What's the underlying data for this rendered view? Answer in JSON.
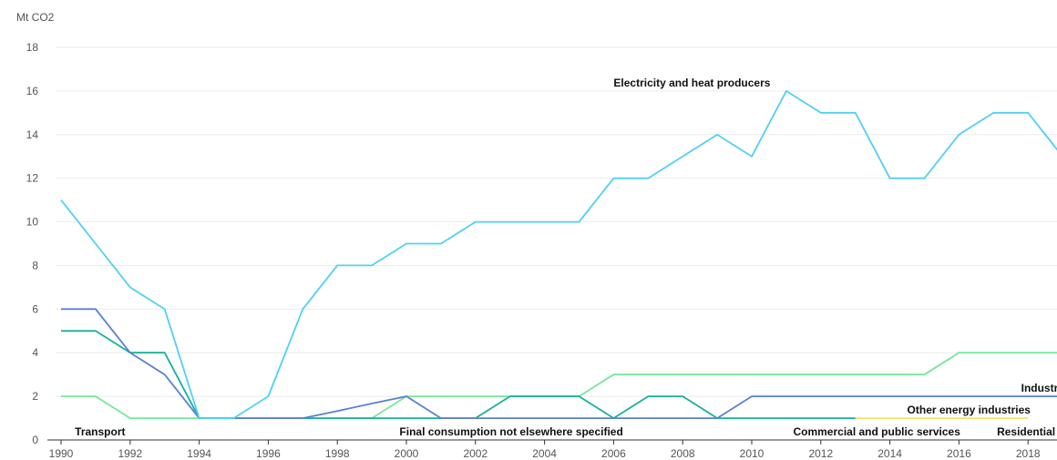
{
  "chart_data": {
    "type": "line",
    "unit_label": "Mt CO2",
    "ylim": [
      0,
      18
    ],
    "y_ticks": [
      0,
      2,
      4,
      6,
      8,
      10,
      12,
      14,
      16,
      18
    ],
    "x_ticks": [
      1990,
      1992,
      1994,
      1996,
      1998,
      2000,
      2002,
      2004,
      2006,
      2008,
      2010,
      2012,
      2014,
      2016,
      2018
    ],
    "grid": true,
    "legend": "none",
    "x": [
      1990,
      1991,
      1992,
      1993,
      1994,
      1995,
      1996,
      1997,
      1998,
      1999,
      2000,
      2001,
      2002,
      2003,
      2004,
      2005,
      2006,
      2007,
      2008,
      2009,
      2010,
      2011,
      2012,
      2013,
      2014,
      2015,
      2016,
      2017,
      2018,
      2019
    ],
    "series": [
      {
        "name": "Electricity and heat producers",
        "color": "#4fd1f2",
        "values": [
          11,
          9,
          7,
          6,
          1,
          1,
          2,
          6,
          8,
          8,
          9,
          9,
          10,
          10,
          10,
          10,
          12,
          12,
          13,
          14,
          13,
          16,
          15,
          15,
          12,
          12,
          14,
          15,
          15,
          13
        ]
      },
      {
        "name": "Industry",
        "color": "#5b7fd6",
        "values": [
          6,
          6,
          4,
          3,
          1,
          1,
          1,
          1,
          1.33,
          1.67,
          2,
          1,
          1,
          1,
          1,
          1,
          1,
          1,
          1,
          1,
          2,
          2,
          2,
          2,
          2,
          2,
          2,
          2,
          2,
          2
        ]
      },
      {
        "name": "Other energy industries",
        "color": "#17b09a",
        "values": [
          5,
          5,
          4,
          4,
          1,
          1,
          1,
          1,
          1,
          1,
          1,
          1,
          1,
          2,
          2,
          2,
          1,
          2,
          2,
          1,
          1,
          1,
          1,
          1,
          null,
          null,
          null,
          null,
          null,
          null
        ]
      },
      {
        "name": "Transport",
        "color": "#76e89a",
        "values": [
          2,
          2,
          1,
          1,
          1,
          1,
          1,
          1,
          1,
          1,
          2,
          2,
          2,
          2,
          2,
          2,
          3,
          3,
          3,
          3,
          3,
          3,
          3,
          3,
          3,
          3,
          4,
          4,
          4,
          4
        ]
      },
      {
        "name": "Commercial and public services",
        "color": "#f5e36a",
        "values": [
          null,
          null,
          null,
          null,
          null,
          null,
          null,
          null,
          null,
          null,
          null,
          null,
          null,
          null,
          null,
          null,
          null,
          null,
          null,
          null,
          null,
          null,
          null,
          1,
          1,
          1,
          1,
          1,
          1,
          null
        ]
      },
      {
        "name": "Residential",
        "color": "#f0c842",
        "values": [
          null,
          null,
          null,
          null,
          null,
          null,
          null,
          null,
          null,
          null,
          null,
          null,
          null,
          null,
          null,
          null,
          null,
          null,
          null,
          null,
          null,
          null,
          null,
          null,
          null,
          null,
          null,
          null,
          null,
          null
        ]
      },
      {
        "name": "Final consumption not elsewhere specified",
        "color": "#9cc9e8",
        "values": [
          null,
          null,
          null,
          null,
          null,
          null,
          null,
          null,
          null,
          null,
          null,
          null,
          null,
          null,
          null,
          null,
          null,
          null,
          null,
          null,
          null,
          null,
          null,
          null,
          null,
          null,
          null,
          null,
          null,
          null
        ]
      }
    ],
    "annotations": [
      {
        "text": "Electricity and heat producers",
        "year": 2006,
        "value": 16
      },
      {
        "text": "Industry",
        "year": 2017.8,
        "value": 2
      },
      {
        "text": "Other energy industries",
        "year": 2014.5,
        "value": 1
      },
      {
        "text": "Transport",
        "year": 1990.4,
        "value": 0
      },
      {
        "text": "Final consumption not elsewhere specified",
        "year": 1999.8,
        "value": 0
      },
      {
        "text": "Commercial and public services",
        "year": 2011.2,
        "value": 0
      },
      {
        "text": "Residential",
        "year": 2017.1,
        "value": 0
      }
    ]
  }
}
